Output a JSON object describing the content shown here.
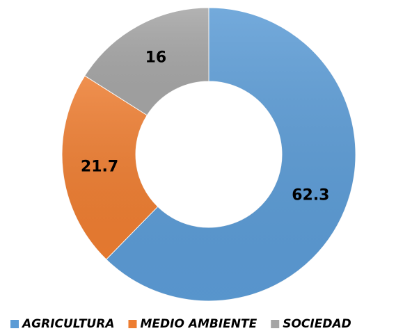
{
  "chart_data": {
    "type": "donut",
    "categories": [
      "AGRICULTURA",
      "MEDIO AMBIENTE",
      "SOCIEDAD"
    ],
    "values": [
      62.3,
      21.7,
      16
    ],
    "colors": [
      "#5b9bd5",
      "#ed7d31",
      "#a5a5a5"
    ],
    "legend": "bottom"
  }
}
